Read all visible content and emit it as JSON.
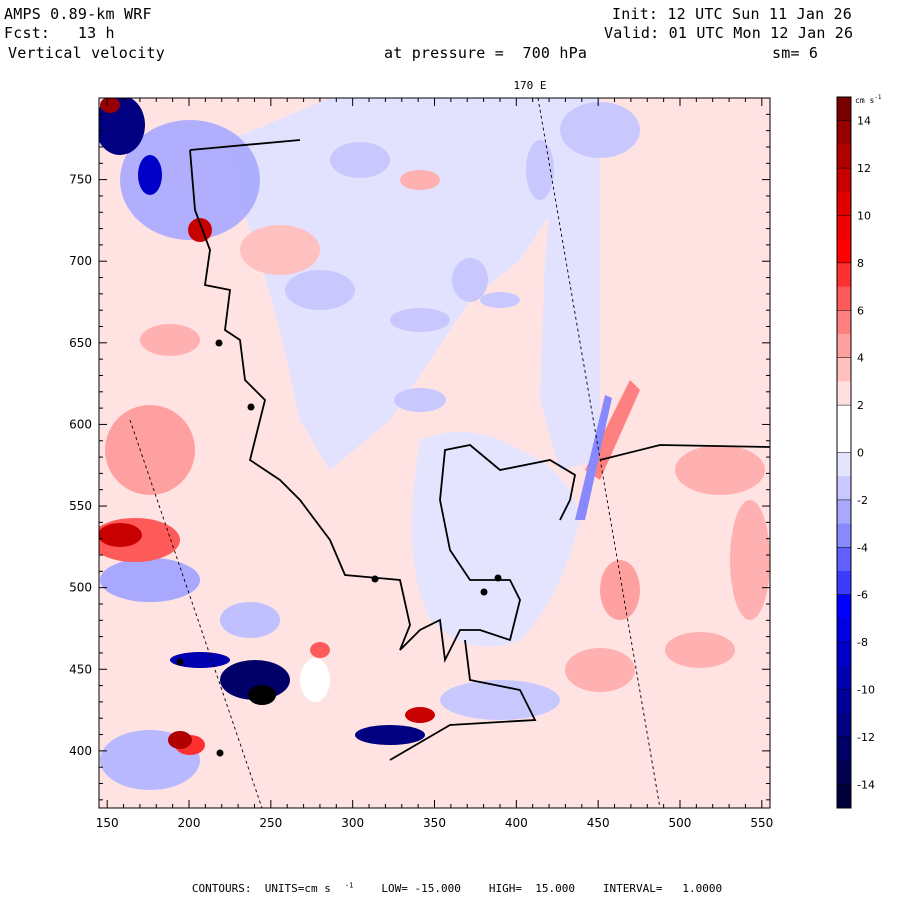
{
  "header": {
    "model": "AMPS 0.89-km WRF",
    "forecast_label": "Fcst:",
    "forecast_value": "13 h",
    "field": "Vertical velocity",
    "init_label": "Init:",
    "init_value": "12 UTC Sun 11 Jan 26",
    "valid_label": "Valid:",
    "valid_value": "01 UTC Mon 12 Jan 26",
    "pressure_text": "at pressure =  700 hPa",
    "smoothing": "sm= 6"
  },
  "map": {
    "meridian_label": "170 E",
    "x_ticks": [
      "150",
      "200",
      "250",
      "300",
      "350",
      "400",
      "450",
      "500",
      "550"
    ],
    "y_ticks": [
      "750",
      "700",
      "650",
      "600",
      "550",
      "500",
      "450",
      "400"
    ],
    "x_range": [
      145,
      555
    ],
    "y_range": [
      365,
      800
    ]
  },
  "colorbar": {
    "units": "cm s",
    "units_exp": "-1",
    "labels": [
      "14",
      "12",
      "10",
      "8",
      "6",
      "4",
      "2",
      "0",
      "-2",
      "-4",
      "-6",
      "-8",
      "-10",
      "-12",
      "-14"
    ],
    "colors_top_to_bottom": [
      "#7a0000",
      "#960000",
      "#b00000",
      "#c80000",
      "#e00000",
      "#f00000",
      "#ff0000",
      "#ff3030",
      "#ff5a5a",
      "#ff8080",
      "#ffa0a0",
      "#ffc0c0",
      "#ffe0e0",
      "#ffffff",
      "#ffffff",
      "#e4e4ff",
      "#c8c8ff",
      "#a8a8ff",
      "#8888ff",
      "#6060ff",
      "#3c3cff",
      "#0000ff",
      "#0000e0",
      "#0000c8",
      "#0000b0",
      "#00009a",
      "#000080",
      "#000068",
      "#000050",
      "#00003a"
    ]
  },
  "footer": {
    "contours": "CONTOURS:  UNITS=cm s",
    "contours_exp": "-1",
    "low": "LOW= -15.000",
    "high": "HIGH=  15.000",
    "interval": "INTERVAL=   1.0000"
  }
}
